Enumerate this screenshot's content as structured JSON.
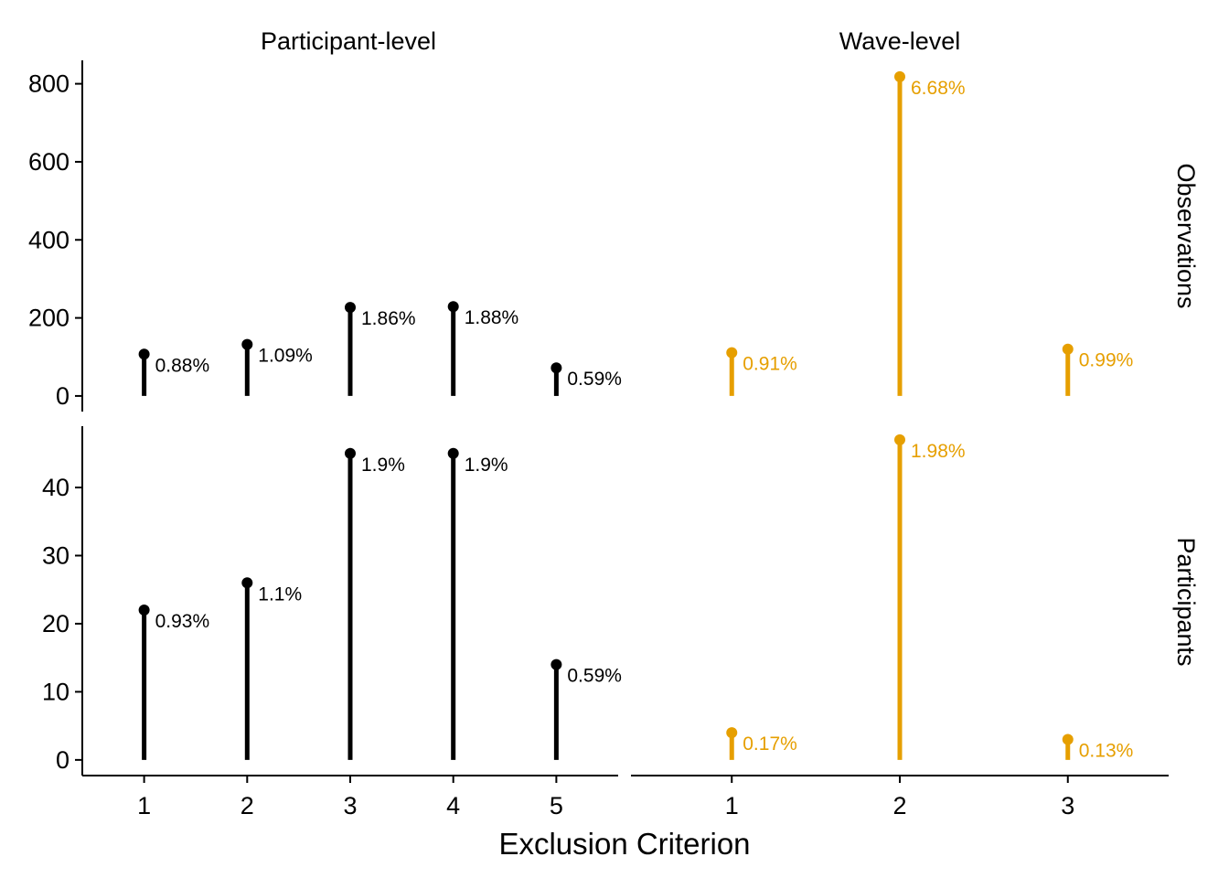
{
  "chart_data": {
    "type": "lollipop",
    "xlabel": "Exclusion Criterion",
    "ylabel": "",
    "columns": [
      {
        "label": "Participant-level",
        "color": "#000000",
        "x": [
          1,
          2,
          3,
          4,
          5
        ],
        "xlim": [
          0.4,
          5.6
        ]
      },
      {
        "label": "Wave-level",
        "color": "#E69F00",
        "x": [
          1,
          2,
          3
        ],
        "xlim": [
          0.4,
          3.6
        ]
      }
    ],
    "rows": [
      {
        "label": "Observations",
        "ylim": [
          -40,
          860
        ],
        "yticks": [
          0,
          200,
          400,
          600,
          800
        ],
        "yticklabels": [
          "0",
          "200",
          "400",
          "600",
          "800"
        ]
      },
      {
        "label": "Participants",
        "ylim": [
          -2.3,
          49
        ],
        "yticks": [
          0,
          10,
          20,
          30,
          40
        ],
        "yticklabels": [
          "0",
          "10",
          "20",
          "30",
          "40"
        ]
      }
    ],
    "panels": [
      {
        "row": 0,
        "col": 0,
        "values": [
          107,
          132,
          227,
          229,
          72
        ],
        "labels": [
          "0.88%",
          "1.09%",
          "1.86%",
          "1.88%",
          "0.59%"
        ]
      },
      {
        "row": 0,
        "col": 1,
        "values": [
          111,
          818,
          120
        ],
        "labels": [
          "0.91%",
          "6.68%",
          "0.99%"
        ]
      },
      {
        "row": 1,
        "col": 0,
        "values": [
          22,
          26,
          45,
          45,
          14
        ],
        "labels": [
          "0.93%",
          "1.1%",
          "1.9%",
          "1.9%",
          "0.59%"
        ]
      },
      {
        "row": 1,
        "col": 1,
        "values": [
          4,
          47,
          3
        ],
        "labels": [
          "0.17%",
          "1.98%",
          "0.13%"
        ]
      }
    ],
    "xticklabels": [
      [
        "1",
        "2",
        "3",
        "4",
        "5"
      ],
      [
        "1",
        "2",
        "3"
      ]
    ],
    "legend": "none",
    "grid": false
  }
}
